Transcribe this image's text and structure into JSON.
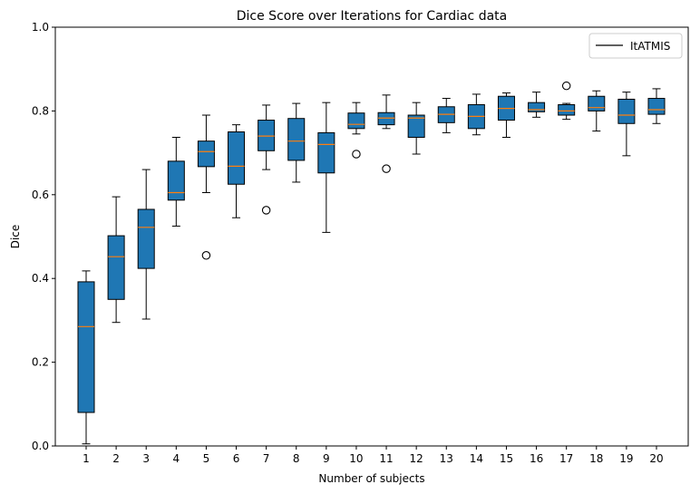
{
  "chart_data": {
    "type": "box",
    "title": "Dice Score over Iterations for Cardiac data",
    "xlabel": "Number of subjects",
    "ylabel": "Dice",
    "ylim": [
      0,
      1.0
    ],
    "yticks": [
      "0.0",
      "0.2",
      "0.4",
      "0.6",
      "0.8",
      "1.0"
    ],
    "categories": [
      "1",
      "2",
      "3",
      "4",
      "5",
      "6",
      "7",
      "8",
      "9",
      "10",
      "11",
      "12",
      "13",
      "14",
      "15",
      "16",
      "17",
      "18",
      "19",
      "20"
    ],
    "legend": {
      "label": "ItATMIS",
      "placement": "top-right"
    },
    "colors": {
      "box_fill": "#1f77b4",
      "median": "#ff7f0e",
      "edge": "#000000"
    },
    "boxes": [
      {
        "category": "1",
        "whisker_low": 0.005,
        "q1": 0.08,
        "median": 0.285,
        "q3": 0.392,
        "whisker_high": 0.418,
        "outliers": []
      },
      {
        "category": "2",
        "whisker_low": 0.295,
        "q1": 0.35,
        "median": 0.452,
        "q3": 0.502,
        "whisker_high": 0.595,
        "outliers": []
      },
      {
        "category": "3",
        "whisker_low": 0.303,
        "q1": 0.424,
        "median": 0.522,
        "q3": 0.565,
        "whisker_high": 0.66,
        "outliers": []
      },
      {
        "category": "4",
        "whisker_low": 0.525,
        "q1": 0.587,
        "median": 0.605,
        "q3": 0.68,
        "whisker_high": 0.737,
        "outliers": []
      },
      {
        "category": "5",
        "whisker_low": 0.605,
        "q1": 0.667,
        "median": 0.703,
        "q3": 0.728,
        "whisker_high": 0.79,
        "outliers": [
          0.455
        ]
      },
      {
        "category": "6",
        "whisker_low": 0.545,
        "q1": 0.625,
        "median": 0.668,
        "q3": 0.75,
        "whisker_high": 0.767,
        "outliers": []
      },
      {
        "category": "7",
        "whisker_low": 0.66,
        "q1": 0.705,
        "median": 0.74,
        "q3": 0.778,
        "whisker_high": 0.814,
        "outliers": [
          0.563
        ]
      },
      {
        "category": "8",
        "whisker_low": 0.63,
        "q1": 0.682,
        "median": 0.728,
        "q3": 0.782,
        "whisker_high": 0.818,
        "outliers": []
      },
      {
        "category": "9",
        "whisker_low": 0.51,
        "q1": 0.652,
        "median": 0.72,
        "q3": 0.748,
        "whisker_high": 0.82,
        "outliers": []
      },
      {
        "category": "10",
        "whisker_low": 0.745,
        "q1": 0.758,
        "median": 0.768,
        "q3": 0.795,
        "whisker_high": 0.82,
        "outliers": [
          0.697
        ]
      },
      {
        "category": "11",
        "whisker_low": 0.758,
        "q1": 0.767,
        "median": 0.783,
        "q3": 0.796,
        "whisker_high": 0.838,
        "outliers": [
          0.662
        ]
      },
      {
        "category": "12",
        "whisker_low": 0.697,
        "q1": 0.737,
        "median": 0.783,
        "q3": 0.79,
        "whisker_high": 0.82,
        "outliers": []
      },
      {
        "category": "13",
        "whisker_low": 0.748,
        "q1": 0.772,
        "median": 0.792,
        "q3": 0.81,
        "whisker_high": 0.83,
        "outliers": []
      },
      {
        "category": "14",
        "whisker_low": 0.743,
        "q1": 0.758,
        "median": 0.787,
        "q3": 0.815,
        "whisker_high": 0.84,
        "outliers": []
      },
      {
        "category": "15",
        "whisker_low": 0.737,
        "q1": 0.778,
        "median": 0.806,
        "q3": 0.835,
        "whisker_high": 0.843,
        "outliers": []
      },
      {
        "category": "16",
        "whisker_low": 0.785,
        "q1": 0.798,
        "median": 0.803,
        "q3": 0.82,
        "whisker_high": 0.845,
        "outliers": []
      },
      {
        "category": "17",
        "whisker_low": 0.78,
        "q1": 0.79,
        "median": 0.8,
        "q3": 0.815,
        "whisker_high": 0.818,
        "outliers": [
          0.86
        ]
      },
      {
        "category": "18",
        "whisker_low": 0.752,
        "q1": 0.8,
        "median": 0.808,
        "q3": 0.835,
        "whisker_high": 0.848,
        "outliers": []
      },
      {
        "category": "19",
        "whisker_low": 0.693,
        "q1": 0.77,
        "median": 0.79,
        "q3": 0.828,
        "whisker_high": 0.845,
        "outliers": []
      },
      {
        "category": "20",
        "whisker_low": 0.77,
        "q1": 0.792,
        "median": 0.803,
        "q3": 0.83,
        "whisker_high": 0.853,
        "outliers": []
      }
    ]
  }
}
